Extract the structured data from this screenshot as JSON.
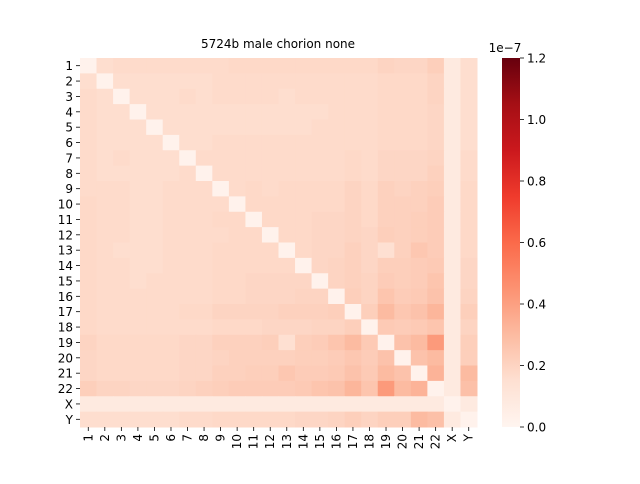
{
  "chart_data": {
    "type": "heatmap",
    "title": "5724b male chorion none",
    "xlabel": "",
    "ylabel": "",
    "row_labels": [
      "1",
      "2",
      "3",
      "4",
      "5",
      "6",
      "7",
      "8",
      "9",
      "10",
      "11",
      "12",
      "13",
      "14",
      "15",
      "16",
      "17",
      "18",
      "19",
      "20",
      "21",
      "22",
      "X",
      "Y"
    ],
    "col_labels": [
      "1",
      "2",
      "3",
      "4",
      "5",
      "6",
      "7",
      "8",
      "9",
      "10",
      "11",
      "12",
      "13",
      "14",
      "15",
      "16",
      "17",
      "18",
      "19",
      "20",
      "21",
      "22",
      "X",
      "Y"
    ],
    "values": [
      [
        0.02,
        0.16,
        0.17,
        0.17,
        0.17,
        0.17,
        0.17,
        0.17,
        0.17,
        0.18,
        0.18,
        0.18,
        0.18,
        0.18,
        0.18,
        0.18,
        0.18,
        0.18,
        0.2,
        0.19,
        0.19,
        0.22,
        0.08,
        0.16
      ],
      [
        0.16,
        0.02,
        0.16,
        0.16,
        0.16,
        0.16,
        0.16,
        0.16,
        0.17,
        0.17,
        0.17,
        0.17,
        0.17,
        0.17,
        0.17,
        0.17,
        0.17,
        0.17,
        0.18,
        0.18,
        0.18,
        0.2,
        0.08,
        0.16
      ],
      [
        0.17,
        0.16,
        0.02,
        0.16,
        0.16,
        0.16,
        0.17,
        0.16,
        0.17,
        0.17,
        0.17,
        0.17,
        0.16,
        0.17,
        0.17,
        0.17,
        0.17,
        0.17,
        0.18,
        0.18,
        0.18,
        0.2,
        0.08,
        0.16
      ],
      [
        0.17,
        0.16,
        0.16,
        0.02,
        0.16,
        0.16,
        0.16,
        0.16,
        0.16,
        0.16,
        0.16,
        0.16,
        0.16,
        0.16,
        0.16,
        0.17,
        0.17,
        0.17,
        0.18,
        0.18,
        0.18,
        0.19,
        0.08,
        0.16
      ],
      [
        0.17,
        0.16,
        0.16,
        0.16,
        0.02,
        0.16,
        0.16,
        0.16,
        0.16,
        0.16,
        0.16,
        0.16,
        0.16,
        0.16,
        0.17,
        0.17,
        0.17,
        0.17,
        0.18,
        0.18,
        0.18,
        0.19,
        0.08,
        0.16
      ],
      [
        0.17,
        0.16,
        0.16,
        0.16,
        0.16,
        0.02,
        0.16,
        0.16,
        0.17,
        0.17,
        0.17,
        0.17,
        0.17,
        0.17,
        0.17,
        0.17,
        0.17,
        0.17,
        0.18,
        0.18,
        0.18,
        0.19,
        0.08,
        0.16
      ],
      [
        0.17,
        0.16,
        0.17,
        0.16,
        0.16,
        0.16,
        0.02,
        0.17,
        0.17,
        0.17,
        0.17,
        0.17,
        0.17,
        0.17,
        0.17,
        0.17,
        0.18,
        0.17,
        0.19,
        0.19,
        0.19,
        0.2,
        0.08,
        0.17
      ],
      [
        0.17,
        0.16,
        0.16,
        0.16,
        0.16,
        0.16,
        0.17,
        0.02,
        0.17,
        0.17,
        0.17,
        0.17,
        0.17,
        0.17,
        0.17,
        0.17,
        0.18,
        0.17,
        0.19,
        0.19,
        0.19,
        0.21,
        0.08,
        0.17
      ],
      [
        0.17,
        0.17,
        0.17,
        0.16,
        0.16,
        0.17,
        0.17,
        0.17,
        0.02,
        0.17,
        0.18,
        0.17,
        0.18,
        0.18,
        0.18,
        0.18,
        0.2,
        0.18,
        0.21,
        0.2,
        0.21,
        0.22,
        0.08,
        0.18
      ],
      [
        0.18,
        0.17,
        0.17,
        0.16,
        0.16,
        0.17,
        0.17,
        0.17,
        0.17,
        0.02,
        0.18,
        0.18,
        0.18,
        0.18,
        0.18,
        0.18,
        0.2,
        0.18,
        0.21,
        0.21,
        0.21,
        0.23,
        0.08,
        0.18
      ],
      [
        0.18,
        0.17,
        0.17,
        0.16,
        0.16,
        0.17,
        0.17,
        0.17,
        0.18,
        0.18,
        0.02,
        0.18,
        0.18,
        0.18,
        0.19,
        0.19,
        0.2,
        0.18,
        0.21,
        0.21,
        0.22,
        0.23,
        0.08,
        0.18
      ],
      [
        0.18,
        0.17,
        0.17,
        0.16,
        0.16,
        0.17,
        0.17,
        0.17,
        0.17,
        0.18,
        0.18,
        0.02,
        0.18,
        0.18,
        0.19,
        0.19,
        0.2,
        0.19,
        0.22,
        0.21,
        0.22,
        0.23,
        0.08,
        0.18
      ],
      [
        0.18,
        0.17,
        0.16,
        0.16,
        0.16,
        0.17,
        0.17,
        0.17,
        0.18,
        0.18,
        0.18,
        0.18,
        0.02,
        0.18,
        0.19,
        0.19,
        0.21,
        0.19,
        0.15,
        0.21,
        0.25,
        0.23,
        0.08,
        0.18
      ],
      [
        0.18,
        0.17,
        0.17,
        0.16,
        0.16,
        0.17,
        0.17,
        0.17,
        0.18,
        0.18,
        0.18,
        0.18,
        0.18,
        0.02,
        0.19,
        0.2,
        0.21,
        0.19,
        0.22,
        0.22,
        0.23,
        0.24,
        0.08,
        0.19
      ],
      [
        0.18,
        0.17,
        0.17,
        0.16,
        0.17,
        0.17,
        0.17,
        0.17,
        0.18,
        0.18,
        0.19,
        0.19,
        0.19,
        0.19,
        0.02,
        0.2,
        0.21,
        0.2,
        0.23,
        0.22,
        0.23,
        0.26,
        0.08,
        0.19
      ],
      [
        0.18,
        0.17,
        0.17,
        0.17,
        0.17,
        0.17,
        0.17,
        0.17,
        0.18,
        0.18,
        0.19,
        0.19,
        0.19,
        0.2,
        0.2,
        0.02,
        0.22,
        0.2,
        0.26,
        0.23,
        0.24,
        0.27,
        0.08,
        0.2
      ],
      [
        0.18,
        0.17,
        0.17,
        0.17,
        0.17,
        0.17,
        0.18,
        0.18,
        0.2,
        0.2,
        0.2,
        0.2,
        0.21,
        0.21,
        0.21,
        0.22,
        0.02,
        0.22,
        0.3,
        0.25,
        0.27,
        0.32,
        0.08,
        0.22
      ],
      [
        0.18,
        0.17,
        0.17,
        0.17,
        0.17,
        0.17,
        0.17,
        0.17,
        0.18,
        0.18,
        0.18,
        0.19,
        0.19,
        0.19,
        0.2,
        0.2,
        0.22,
        0.02,
        0.24,
        0.23,
        0.24,
        0.26,
        0.08,
        0.2
      ],
      [
        0.2,
        0.18,
        0.18,
        0.18,
        0.18,
        0.18,
        0.19,
        0.19,
        0.21,
        0.21,
        0.21,
        0.22,
        0.15,
        0.22,
        0.23,
        0.26,
        0.3,
        0.24,
        0.02,
        0.27,
        0.3,
        0.42,
        0.08,
        0.22
      ],
      [
        0.19,
        0.18,
        0.18,
        0.18,
        0.18,
        0.18,
        0.19,
        0.19,
        0.2,
        0.21,
        0.21,
        0.21,
        0.21,
        0.22,
        0.22,
        0.23,
        0.25,
        0.23,
        0.27,
        0.02,
        0.27,
        0.3,
        0.08,
        0.22
      ],
      [
        0.19,
        0.18,
        0.18,
        0.18,
        0.18,
        0.18,
        0.19,
        0.19,
        0.21,
        0.21,
        0.22,
        0.22,
        0.25,
        0.23,
        0.23,
        0.24,
        0.27,
        0.24,
        0.3,
        0.27,
        0.02,
        0.33,
        0.08,
        0.3
      ],
      [
        0.22,
        0.2,
        0.2,
        0.19,
        0.19,
        0.19,
        0.2,
        0.21,
        0.22,
        0.23,
        0.23,
        0.23,
        0.23,
        0.24,
        0.26,
        0.27,
        0.32,
        0.26,
        0.42,
        0.3,
        0.33,
        0.02,
        0.08,
        0.28
      ],
      [
        0.08,
        0.08,
        0.08,
        0.08,
        0.08,
        0.08,
        0.08,
        0.08,
        0.08,
        0.08,
        0.08,
        0.08,
        0.08,
        0.08,
        0.08,
        0.08,
        0.08,
        0.08,
        0.08,
        0.08,
        0.08,
        0.08,
        0.02,
        0.08
      ],
      [
        0.16,
        0.16,
        0.16,
        0.16,
        0.16,
        0.16,
        0.17,
        0.17,
        0.18,
        0.18,
        0.18,
        0.18,
        0.18,
        0.19,
        0.19,
        0.2,
        0.22,
        0.2,
        0.22,
        0.22,
        0.3,
        0.28,
        0.08,
        0.02
      ]
    ],
    "value_scale_label": "1e−7",
    "colorbar": {
      "min": 0.0,
      "max": 1.2,
      "ticks": [
        "0.0",
        "0.2",
        "0.4",
        "0.6",
        "0.8",
        "1.0",
        "1.2"
      ],
      "colormap": "Reds",
      "colors": [
        "#fff5f0",
        "#fee0d2",
        "#fcbba1",
        "#fc9272",
        "#fb6a4a",
        "#ef3b2c",
        "#cb181d",
        "#a50f15",
        "#67000d"
      ]
    },
    "grid": false,
    "legend": "colorbar-right"
  }
}
